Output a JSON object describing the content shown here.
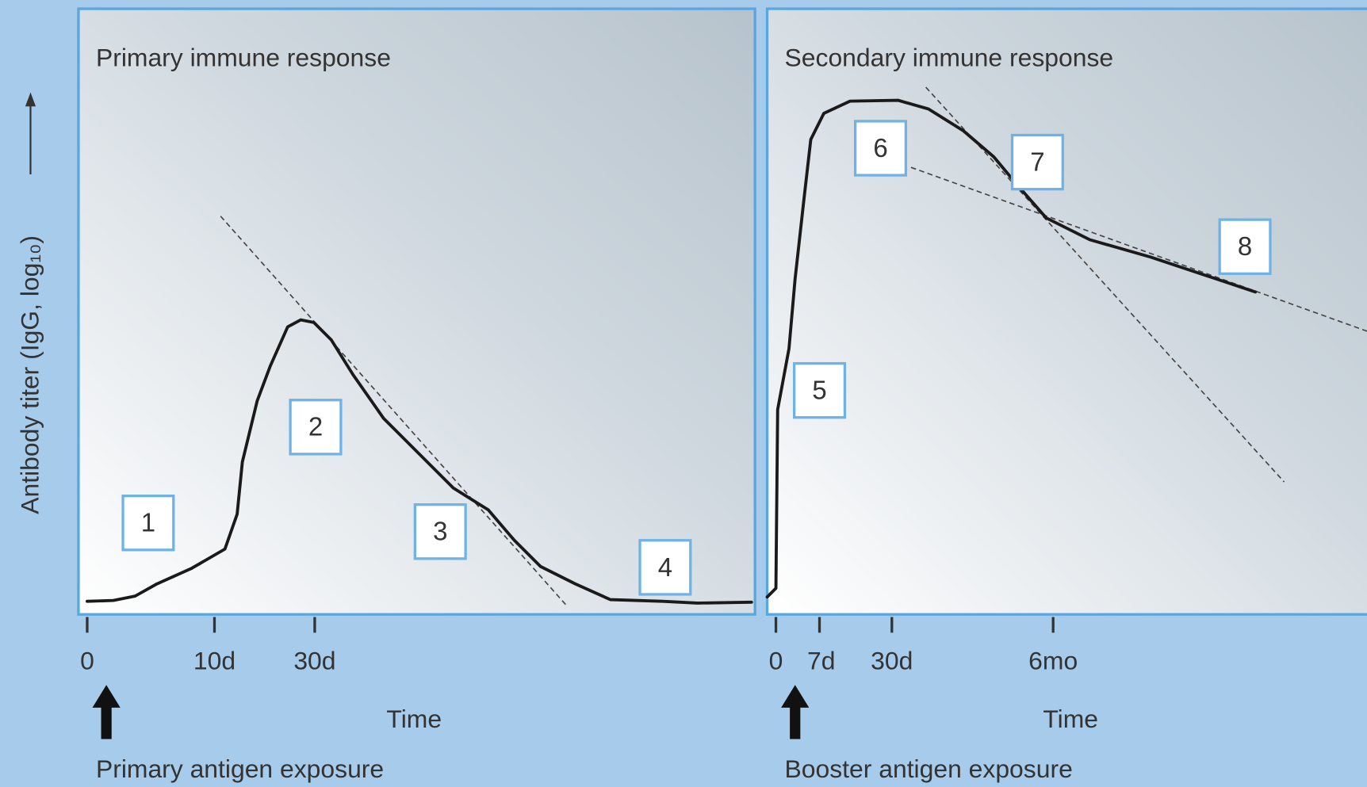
{
  "y_axis_label": "Antibody titer (IgG, log₁₀)",
  "panels": [
    {
      "title": "Primary immune response",
      "ticks": [
        "0",
        "10d",
        "30d"
      ],
      "time_label": "Time",
      "exposure_label": "Primary antigen exposure",
      "steps": [
        "1",
        "2",
        "3",
        "4"
      ]
    },
    {
      "title": "Secondary immune response",
      "ticks": [
        "0",
        "7d",
        "30d",
        "6mo"
      ],
      "time_label": "Time",
      "exposure_label": "Booster antigen exposure",
      "steps": [
        "5",
        "6",
        "7",
        "8"
      ]
    }
  ]
}
